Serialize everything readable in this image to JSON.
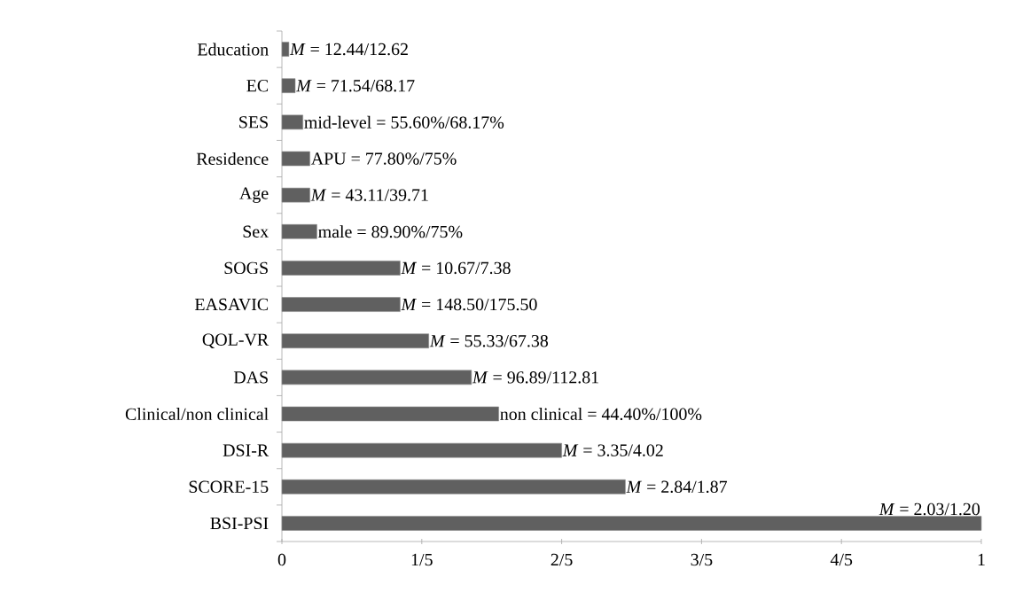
{
  "chart_data": {
    "type": "bar",
    "orientation": "horizontal",
    "color": "#606060",
    "categories": [
      "Education",
      "EC",
      "SES",
      "Residence",
      "Age",
      "Sex",
      "SOGS",
      "EASAVIC",
      "QOL-VR",
      "DAS",
      "Clinical/non clinical",
      "DSI-R",
      "SCORE-15",
      "BSI-PSI"
    ],
    "values": [
      0.01,
      0.019,
      0.03,
      0.04,
      0.04,
      0.05,
      0.169,
      0.169,
      0.21,
      0.271,
      0.31,
      0.4,
      0.491,
      1
    ],
    "annotations": [
      {
        "text": "*M* = 12.44/12.62",
        "x": 0.01,
        "y": "Education"
      },
      {
        "text": "*M* = 71.54/68.17",
        "x": 0.019,
        "y": "EC"
      },
      {
        "text": "mid-level = 55.60%/68.17%",
        "x": 0.03,
        "y": "SES"
      },
      {
        "text": "APU = 77.80%/75%",
        "x": 0.04,
        "y": "Residence"
      },
      {
        "text": "*M* = 43.11/39.71",
        "x": 0.04,
        "y": "Age"
      },
      {
        "text": "male = 89.90%/75%",
        "x": 0.05,
        "y": "Sex"
      },
      {
        "text": "*M* = 10.67/7.38",
        "x": 0.169,
        "y": "SOGS"
      },
      {
        "text": "*M* = 148.50/175.50",
        "x": 0.169,
        "y": "EASAVIC"
      },
      {
        "text": "*M* = 55.33/67.38",
        "x": 0.21,
        "y": "QOL-VR"
      },
      {
        "text": "*M* = 96.89/112.81",
        "x": 0.271,
        "y": "DAS"
      },
      {
        "text": "non clinical = 44.40%/100%",
        "x": 0.31,
        "y": "Clinical/non clinical"
      },
      {
        "text": "*M* = 3.35/4.02",
        "x": 0.4,
        "y": "DSI-R"
      },
      {
        "text": "*M* = 2.84/1.87",
        "x": 0.491,
        "y": "SCORE-15"
      },
      {
        "text": "*M* = 2.03/1.20",
        "x": 1,
        "y": "BSI-PSI"
      }
    ],
    "xlim": [
      0,
      1
    ],
    "xticks": [
      0,
      {
        "value": 0.2,
        "label": "1/5"
      },
      {
        "value": 0.4,
        "label": "2/5"
      },
      {
        "value": 0.6,
        "label": "3/5"
      },
      {
        "value": 0.8,
        "label": "4/5"
      },
      1
    ]
  }
}
